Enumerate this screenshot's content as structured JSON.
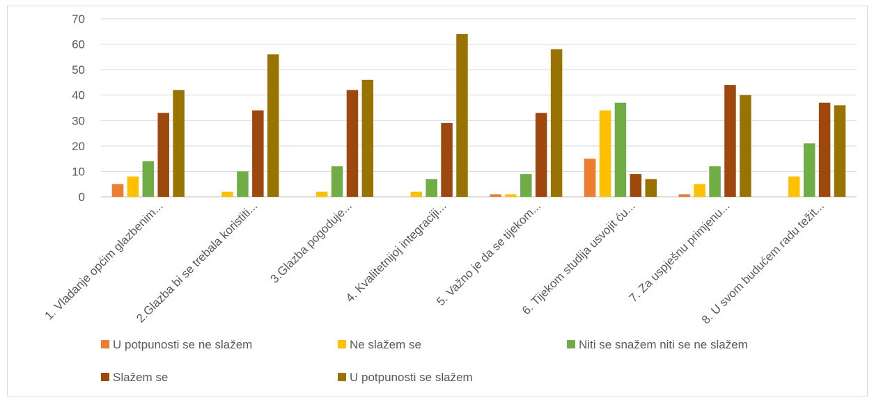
{
  "chart_data": {
    "type": "bar",
    "categories": [
      "1. Vladanje općim glazbenim...",
      "2.Glazba bi se trebala koristiti...",
      "3.Glazba pogoduje...",
      "4. Kvalitetnijoj integraciji...",
      "5. Važno je da se tijekom...",
      "6. Tijekom studija usvojit ću...",
      "7. Za uspješnu primjenu...",
      "8. U svom budućem radu težit..."
    ],
    "series": [
      {
        "name": "U potpunosti se ne slažem",
        "color": "#ED7D31",
        "values": [
          5,
          0,
          0,
          0,
          1,
          15,
          1,
          0
        ]
      },
      {
        "name": "Ne slažem se",
        "color": "#FFC000",
        "values": [
          8,
          2,
          2,
          2,
          1,
          34,
          5,
          8
        ]
      },
      {
        "name": "Niti se snažem niti se ne slažem",
        "color": "#70AD47",
        "values": [
          14,
          10,
          12,
          7,
          9,
          37,
          12,
          21
        ]
      },
      {
        "name": "Slažem se",
        "color": "#9E480E",
        "values": [
          33,
          34,
          42,
          29,
          33,
          9,
          44,
          37
        ]
      },
      {
        "name": "U potpunosti se slažem",
        "color": "#997300",
        "values": [
          42,
          56,
          46,
          64,
          58,
          7,
          40,
          36
        ]
      }
    ],
    "yticks": [
      "0",
      "10",
      "20",
      "30",
      "40",
      "50",
      "60",
      "70"
    ],
    "ylim": [
      0,
      70
    ],
    "grid": true,
    "legend": "bottom",
    "title": "",
    "xlabel": "",
    "ylabel": ""
  }
}
